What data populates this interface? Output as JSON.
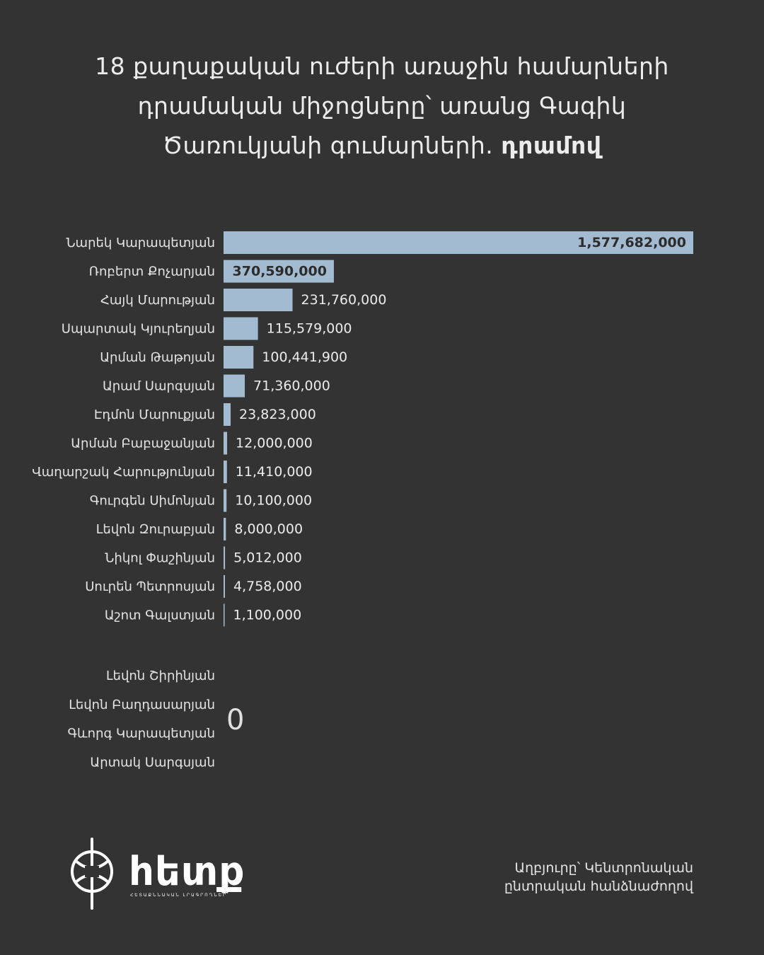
{
  "title": {
    "line1": "18 քաղաքական ուժերի առաջին համարների",
    "line2": "դրամական միջոցները՝ առանց Գագիկ",
    "line3": "Ծառուկյանի գումարների.",
    "unit": "դրամով"
  },
  "chart_data": {
    "type": "bar",
    "orientation": "horizontal",
    "categories": [
      "Նարեկ Կարապետյան",
      "Ռոբերտ Քոչարյան",
      "Հայկ Մարության",
      "Սպարտակ Կյուրեղյան",
      "Արման Թաթոյան",
      "Արամ Սարգսյան",
      "Էդմոն Մարուքյան",
      "Արման Բաբաջանյան",
      "Վաղարշակ Հարությունյան",
      "Գուրգեն Սիմոնյան",
      "Լեվոն Զուրաբյան",
      "Նիկոլ Փաշինյան",
      "Սուրեն Պետրոսյան",
      "Աշոտ Գալստյան"
    ],
    "values": [
      1577682000,
      370590000,
      231760000,
      115579000,
      100441900,
      71360000,
      23823000,
      12000000,
      11410000,
      10100000,
      8000000,
      5012000,
      4758000,
      1100000
    ],
    "value_labels": [
      "1,577,682,000",
      "370,590,000",
      "231,760,000",
      "115,579,000",
      "100,441,900",
      "71,360,000",
      "23,823,000",
      "12,000,000",
      "11,410,000",
      "10,100,000",
      "8,000,000",
      "5,012,000",
      "4,758,000",
      "1,100,000"
    ],
    "zero_group": {
      "names": [
        "Լեվոն Շիրինյան",
        "Լեվոն Բաղդասարյան",
        "Գևորգ Կարապետյան",
        "Արտակ Սարգսյան"
      ],
      "value": 0,
      "value_label": "0"
    },
    "bar_color": "#a3bbd1",
    "background": "#333333"
  },
  "brand": {
    "name": "հետք",
    "tagline": "ՀԵՏԱՔՆՆԱԿԱՆ ԼՐԱԳՐՈՂՆԵՐ"
  },
  "source": {
    "line1": "Աղբյուրը՝ Կենտրոնական",
    "line2": "ընտրական հանձնաժողով"
  }
}
